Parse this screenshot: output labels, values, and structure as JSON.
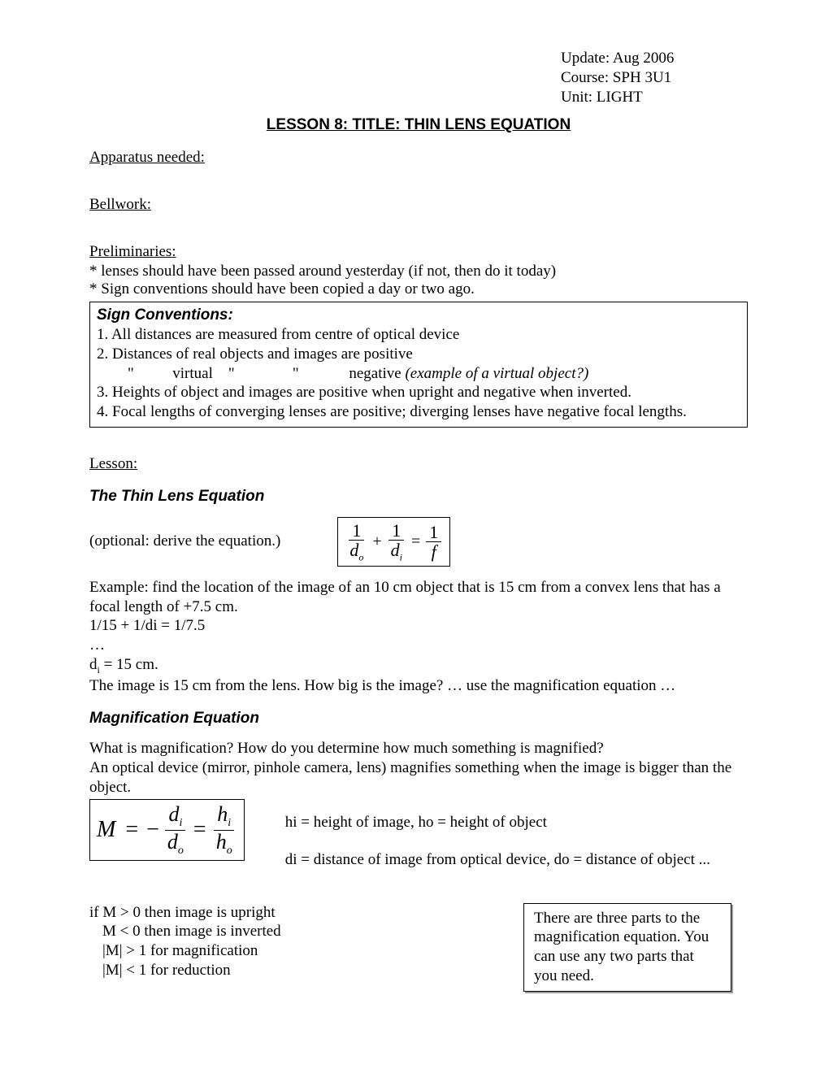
{
  "header": {
    "update": "Update: Aug 2006",
    "course": "Course: SPH 3U1",
    "unit": "Unit: LIGHT"
  },
  "title": "LESSON 8: TITLE: THIN LENS EQUATION",
  "labels": {
    "apparatus": "Apparatus needed",
    "bellwork": "Bellwork",
    "preliminaries": "Preliminaries:",
    "lesson": "Lesson"
  },
  "prelims": {
    "l1": "* lenses should have been passed around yesterday (if not, then do it today)",
    "l2": "* Sign conventions should have been copied a day or two ago."
  },
  "signbox": {
    "title": "Sign Conventions:",
    "r1": "1. All distances are measured from centre of optical device",
    "r2": "2. Distances of real objects and images are positive",
    "r2b_lead": "        \"          virtual    \"               \"             negative ",
    "r2b_italic": "(example of a virtual object?)",
    "r3": "3. Heights of object and images are positive when upright and negative when inverted.",
    "r4": "4. Focal lengths of converging lenses are positive; diverging lenses have negative focal lengths."
  },
  "thinlens": {
    "heading": "The Thin Lens Equation",
    "optional": "(optional: derive the equation.)",
    "eq_num1": "1",
    "eq_den1": "d",
    "eq_den1_sub": "o",
    "eq_plus": "+",
    "eq_num2": "1",
    "eq_den2": "d",
    "eq_den2_sub": "i",
    "eq_equals": "=",
    "eq_num3": "1",
    "eq_den3": "f"
  },
  "example": {
    "l1": "Example: find the location of the image of an 10 cm object that is 15 cm from a convex lens that has a",
    "l1b": "focal length of +7.5 cm.",
    "l2": "1/15 + 1/di = 1/7.5",
    "l3": "…",
    "l4_pre": "d",
    "l4_sub": "i",
    "l4_post": " = 15 cm.",
    "l5": "The image is 15 cm from the lens.  How big is the image? … use the magnification equation …"
  },
  "mag": {
    "heading": "Magnification Equation",
    "q1": "What is magnification? How do you determine how much something is magnified?",
    "q2": "An optical device (mirror, pinhole camera, lens) magnifies something when the image is bigger than the object.",
    "M": "M",
    "eq": "=",
    "minus": "−",
    "f1_num": "d",
    "f1_num_sub": "i",
    "f1_den": "d",
    "f1_den_sub": "o",
    "f2_num": "h",
    "f2_num_sub": "i",
    "f2_den": "h",
    "f2_den_sub": "o",
    "def1": "hi = height of image, ho = height of object",
    "def2": "di = distance of image from optical device, do = distance of object ..."
  },
  "mrules": {
    "r1": "if M > 0 then image is upright",
    "r2": "M < 0 then image is inverted",
    "r3": "|M| > 1 for magnification",
    "r4": "|M| < 1 for reduction"
  },
  "note": "There are three parts to the magnification equation. You can use any two parts that you need."
}
